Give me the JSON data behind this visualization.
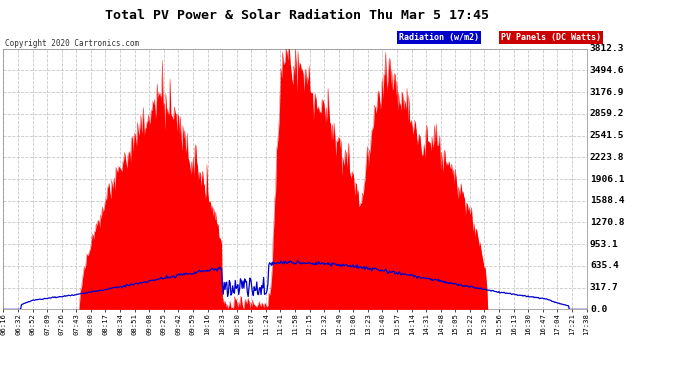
{
  "title": "Total PV Power & Solar Radiation Thu Mar 5 17:45",
  "copyright": "Copyright 2020 Cartronics.com",
  "legend_radiation": "Radiation (w/m2)",
  "legend_pv": "PV Panels (DC Watts)",
  "y_max": 3812.3,
  "y_ticks": [
    0.0,
    317.7,
    635.4,
    953.1,
    1270.8,
    1588.4,
    1906.1,
    2223.8,
    2541.5,
    2859.2,
    3176.9,
    3494.6,
    3812.3
  ],
  "bg_color": "#ffffff",
  "plot_bg_color": "#ffffff",
  "grid_color": "#c8c8c8",
  "pv_color": "#ff0000",
  "radiation_color": "#0000cc",
  "title_color": "#000000",
  "x_tick_labels": [
    "06:16",
    "06:32",
    "06:52",
    "07:09",
    "07:26",
    "07:43",
    "08:00",
    "08:17",
    "08:34",
    "08:51",
    "09:08",
    "09:25",
    "09:42",
    "09:59",
    "10:16",
    "10:33",
    "10:50",
    "11:07",
    "11:24",
    "11:41",
    "11:58",
    "12:15",
    "12:32",
    "12:49",
    "13:06",
    "13:23",
    "13:40",
    "13:57",
    "14:14",
    "14:31",
    "14:48",
    "15:05",
    "15:22",
    "15:39",
    "15:56",
    "16:13",
    "16:30",
    "16:47",
    "17:04",
    "17:21",
    "17:38"
  ]
}
